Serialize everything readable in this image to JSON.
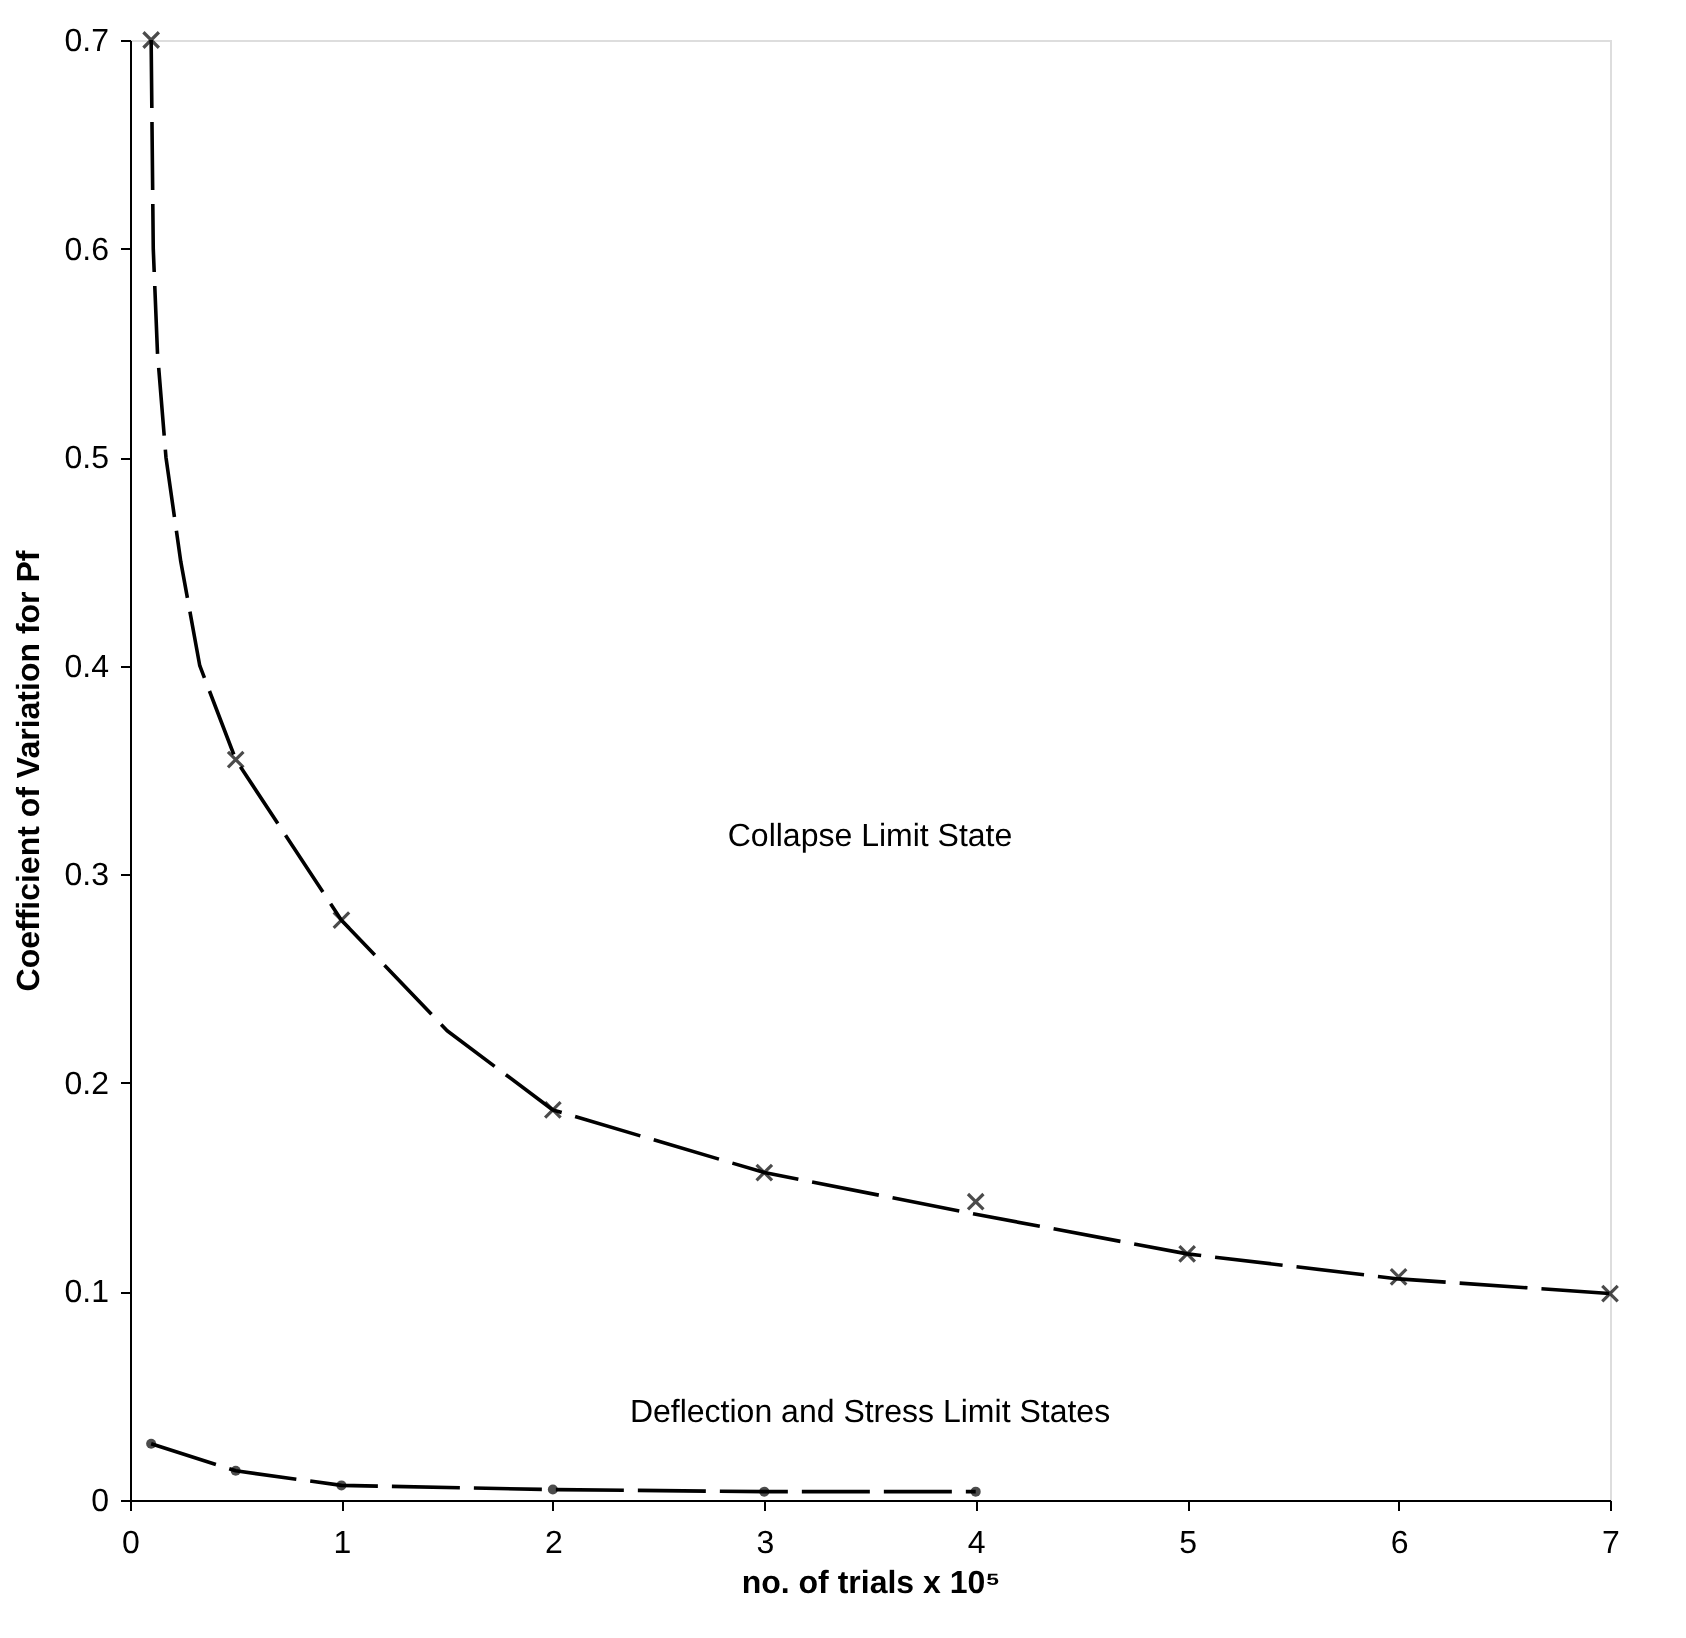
{
  "chart_data": {
    "type": "line",
    "xlabel": "no. of trials x 10⁵",
    "ylabel": "Coefficient of Variation for Pf",
    "xlim": [
      0,
      7
    ],
    "xticks": [
      0,
      1,
      2,
      3,
      4,
      5,
      6,
      7
    ],
    "ylim": [
      0,
      0.7
    ],
    "yticks": [
      0,
      0.1,
      0.2,
      0.3,
      0.4,
      0.5,
      0.6,
      0.7
    ],
    "grid": false,
    "series": [
      {
        "type": "line",
        "marker": "none",
        "line_style": "dashed",
        "color": "#000000",
        "x": [
          0.1,
          0.11,
          0.13,
          0.17,
          0.24,
          0.33,
          0.5,
          1,
          1.5,
          2,
          3,
          4,
          5,
          6,
          7
        ],
        "values": [
          0.7,
          0.6,
          0.55,
          0.5,
          0.45,
          0.4,
          0.355,
          0.278,
          0.225,
          0.187,
          0.157,
          0.137,
          0.118,
          0.106,
          0.099
        ]
      },
      {
        "type": "scatter",
        "marker": "cross",
        "color": "#000000",
        "x": [
          0.1,
          0.5,
          1,
          2,
          3,
          4,
          5,
          6,
          7
        ],
        "values": [
          0.7,
          0.355,
          0.278,
          0.187,
          0.157,
          0.143,
          0.118,
          0.107,
          0.099
        ]
      },
      {
        "type": "line",
        "marker": "circle",
        "line_style": "dashed",
        "color": "#000000",
        "x": [
          0.1,
          0.5,
          1,
          2,
          3,
          4
        ],
        "values": [
          0.027,
          0.014,
          0.007,
          0.005,
          0.004,
          0.004
        ]
      }
    ],
    "annotations": [
      "Collapse Limit State",
      "Deflection and Stress Limit States"
    ]
  }
}
